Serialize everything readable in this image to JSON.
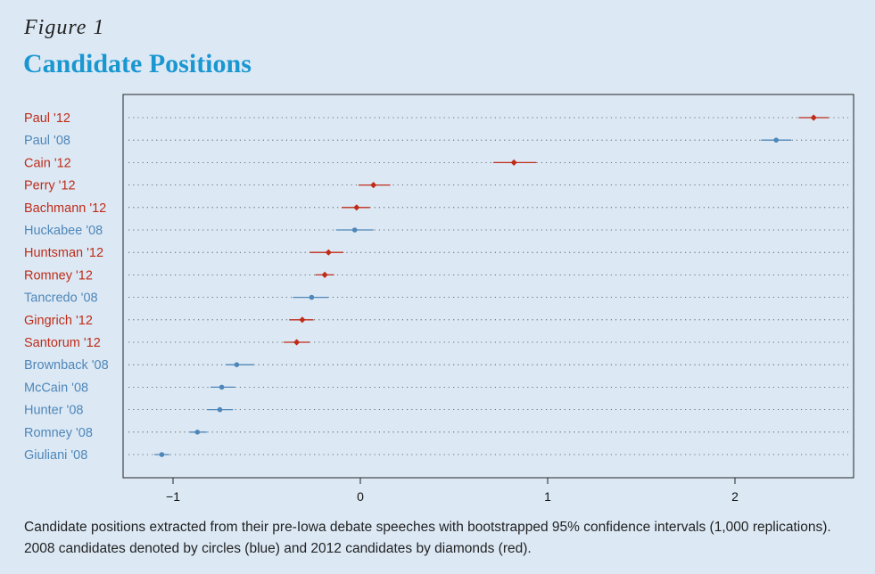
{
  "figure_label": "Figure 1",
  "title": "Candidate Positions",
  "caption": "Candidate positions extracted from their pre-Iowa debate speeches with bootstrapped 95% confidence intervals (1,000 replications). 2008 candidates denoted by circles (blue) and 2012 candidates by diamonds (red).",
  "colors": {
    "2008": "#4f86b8",
    "2012": "#bf2c18",
    "background": "#dce9f5"
  },
  "chart_data": {
    "type": "scatter",
    "title": "Candidate Positions",
    "xlabel": "",
    "ylabel": "",
    "xlim": [
      -1.3,
      2.6
    ],
    "xticks": [
      -1,
      0,
      1,
      2
    ],
    "xtick_labels": [
      "−1",
      "0",
      "1",
      "2"
    ],
    "grid": "dotted horizontal lines per row",
    "series": [
      {
        "marker": "diamond",
        "color": "#bf2c18",
        "points": [
          {
            "label": "Paul '12",
            "x": 2.42,
            "lo": 2.34,
            "hi": 2.5
          },
          {
            "label": "Cain '12",
            "x": 0.82,
            "lo": 0.71,
            "hi": 0.94
          },
          {
            "label": "Perry '12",
            "x": 0.07,
            "lo": -0.01,
            "hi": 0.16
          },
          {
            "label": "Bachmann '12",
            "x": -0.02,
            "lo": -0.1,
            "hi": 0.05
          },
          {
            "label": "Huntsman '12",
            "x": -0.17,
            "lo": -0.27,
            "hi": -0.09
          },
          {
            "label": "Romney '12",
            "x": -0.19,
            "lo": -0.24,
            "hi": -0.14
          },
          {
            "label": "Gingrich '12",
            "x": -0.31,
            "lo": -0.38,
            "hi": -0.25
          },
          {
            "label": "Santorum '12",
            "x": -0.34,
            "lo": -0.41,
            "hi": -0.27
          }
        ]
      },
      {
        "marker": "circle",
        "color": "#4f86b8",
        "points": [
          {
            "label": "Paul '08",
            "x": 2.22,
            "lo": 2.14,
            "hi": 2.3
          },
          {
            "label": "Huckabee '08",
            "x": -0.03,
            "lo": -0.13,
            "hi": 0.07
          },
          {
            "label": "Tancredo '08",
            "x": -0.26,
            "lo": -0.36,
            "hi": -0.17
          },
          {
            "label": "Brownback '08",
            "x": -0.66,
            "lo": -0.72,
            "hi": -0.57
          },
          {
            "label": "McCain '08",
            "x": -0.74,
            "lo": -0.8,
            "hi": -0.67
          },
          {
            "label": "Hunter '08",
            "x": -0.75,
            "lo": -0.82,
            "hi": -0.68
          },
          {
            "label": "Romney '08",
            "x": -0.87,
            "lo": -0.91,
            "hi": -0.82
          },
          {
            "label": "Giuliani '08",
            "x": -1.06,
            "lo": -1.1,
            "hi": -1.02
          }
        ]
      }
    ],
    "rows": [
      "Paul '12",
      "Paul '08",
      "Cain '12",
      "Perry '12",
      "Bachmann '12",
      "Huckabee '08",
      "Huntsman '12",
      "Romney '12",
      "Tancredo '08",
      "Gingrich '12",
      "Santorum '12",
      "Brownback '08",
      "McCain '08",
      "Hunter '08",
      "Romney '08",
      "Giuliani '08"
    ]
  }
}
